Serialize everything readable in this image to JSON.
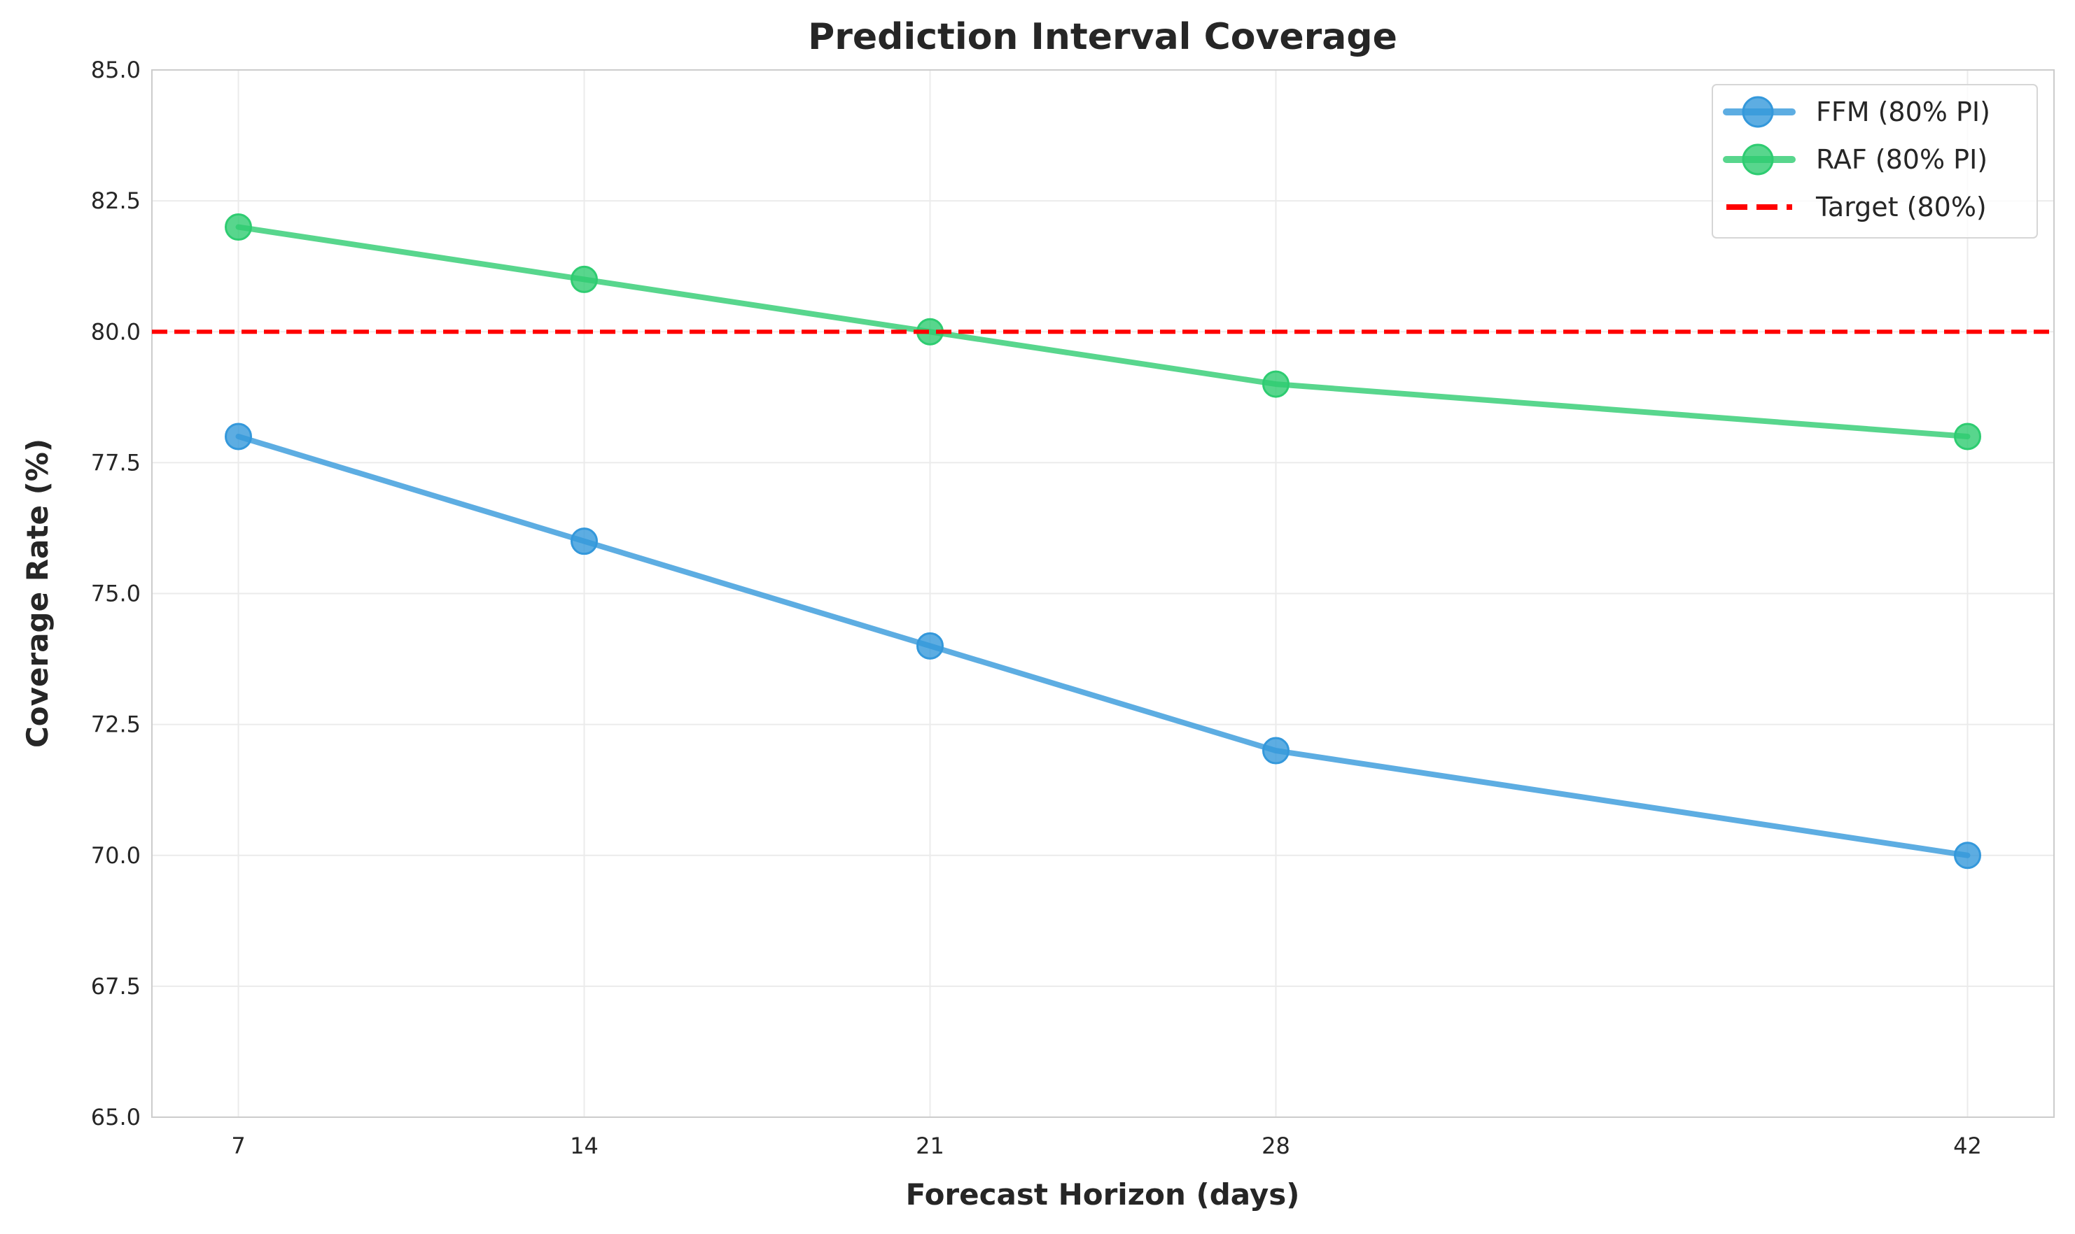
{
  "chart_data": {
    "type": "line",
    "title": "Prediction Interval Coverage",
    "xlabel": "Forecast Horizon (days)",
    "ylabel": "Coverage Rate (%)",
    "x": [
      7,
      14,
      21,
      28,
      42
    ],
    "xticks": [
      "7",
      "14",
      "21",
      "28",
      "42"
    ],
    "xlim": [
      5.25,
      43.75
    ],
    "ylim": [
      65,
      85
    ],
    "yticks": [
      "65.0",
      "67.5",
      "70.0",
      "72.5",
      "75.0",
      "77.5",
      "80.0",
      "82.5",
      "85.0"
    ],
    "grid": true,
    "legend_position": "top-right",
    "series": [
      {
        "name": "FFM (80% PI)",
        "values": [
          78,
          76,
          74,
          72,
          70
        ],
        "color": "#3498db"
      },
      {
        "name": "RAF (80% PI)",
        "values": [
          82,
          81,
          80,
          79,
          78
        ],
        "color": "#2ecc71"
      }
    ],
    "reference_line": {
      "name": "Target (80%)",
      "value": 80,
      "color": "#ff0000",
      "style": "dashed"
    }
  }
}
